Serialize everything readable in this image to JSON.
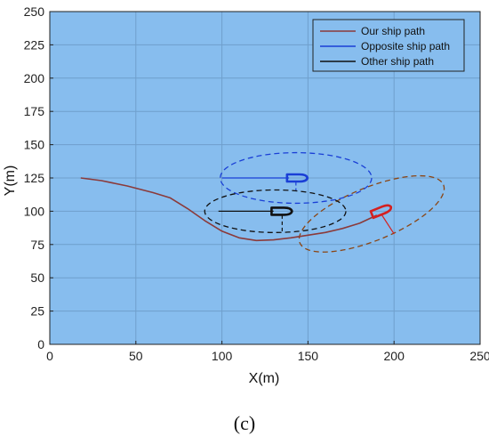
{
  "chart_data": {
    "type": "line",
    "xlabel": "X(m)",
    "ylabel": "Y(m)",
    "xlim": [
      0,
      250
    ],
    "ylim": [
      0,
      250
    ],
    "x_ticks": [
      0,
      50,
      100,
      150,
      200,
      250
    ],
    "y_ticks": [
      0,
      25,
      50,
      75,
      100,
      125,
      150,
      175,
      200,
      225,
      250
    ],
    "grid": true,
    "background": "#87bdee",
    "legend_position": "top-right",
    "series": [
      {
        "name": "Our ship path",
        "color": "#8b3a3a",
        "x": [
          18,
          30,
          45,
          60,
          70,
          80,
          90,
          100,
          110,
          120,
          130,
          140,
          150,
          160,
          170,
          180,
          190
        ],
        "y": [
          125,
          123,
          119,
          114,
          110,
          102,
          93,
          85,
          80,
          78,
          78.5,
          80,
          82,
          84,
          87,
          91,
          97
        ]
      },
      {
        "name": "Opposite ship path",
        "color": "#1a3fd6",
        "x": [],
        "y": []
      },
      {
        "name": "Other ship path",
        "color": "#111111",
        "x": [],
        "y": []
      }
    ],
    "ships": [
      {
        "id": "our",
        "color": "#d42020",
        "position": [
          192,
          100
        ],
        "heading_deg": 22,
        "domain_ellipse": {
          "center": [
            187,
            98
          ],
          "rx": 45,
          "ry": 20,
          "rotation_deg": 22,
          "color": "#8b4513"
        },
        "leader": [
          [
            193,
            97
          ],
          [
            200,
            83
          ]
        ]
      },
      {
        "id": "opposite",
        "color": "#1a3fd6",
        "position": [
          143,
          125
        ],
        "heading_deg": 0,
        "domain_ellipse": {
          "center": [
            143,
            125
          ],
          "rx": 44,
          "ry": 19,
          "rotation_deg": 0,
          "color": "#1a3fd6"
        },
        "leader": [
          [
            100,
            125
          ],
          [
            139,
            125
          ]
        ],
        "leader2": [
          [
            143,
            122
          ],
          [
            143,
            115
          ]
        ]
      },
      {
        "id": "other",
        "color": "#111111",
        "position": [
          134,
          100
        ],
        "heading_deg": 0,
        "domain_ellipse": {
          "center": [
            131,
            100
          ],
          "rx": 41,
          "ry": 16,
          "rotation_deg": 0,
          "color": "#111111"
        },
        "leader": [
          [
            98,
            100
          ],
          [
            130,
            100
          ]
        ],
        "leader2": [
          [
            135,
            97
          ],
          [
            135,
            84
          ]
        ]
      }
    ]
  },
  "caption": "(c)"
}
